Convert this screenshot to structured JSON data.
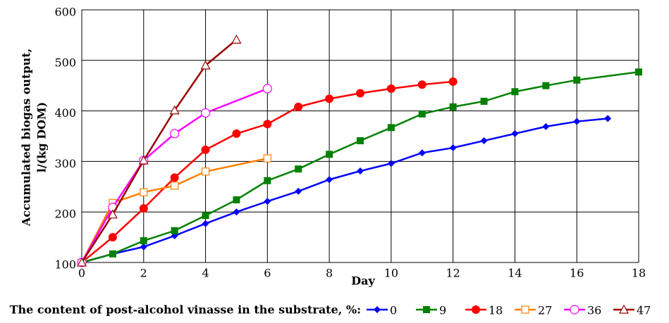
{
  "chart_data": {
    "type": "line",
    "y_label_lines": [
      "Accumulated biogas output,",
      "l/(kg DOM)"
    ],
    "x_label": "Day",
    "legend_title": "The content of post-alcohol vinasse in the substrate, %:",
    "xlim": [
      0,
      18
    ],
    "xticks": [
      0,
      2,
      4,
      6,
      8,
      10,
      12,
      14,
      16,
      18
    ],
    "ylim": [
      100,
      600
    ],
    "yticks": [
      100,
      200,
      300,
      400,
      500,
      600
    ],
    "grid": true,
    "series": [
      {
        "name": "0",
        "color": "#0000ff",
        "marker": "diamond",
        "x": [
          0,
          1,
          2,
          3,
          4,
          5,
          6,
          7,
          8,
          9,
          10,
          11,
          12,
          13,
          14,
          15,
          16,
          17
        ],
        "values": [
          100,
          117,
          131,
          153,
          177,
          200,
          221,
          241,
          264,
          281,
          296,
          317,
          327,
          341,
          355,
          369,
          379,
          385
        ]
      },
      {
        "name": "9",
        "color": "#008000",
        "marker": "square",
        "x": [
          0,
          1,
          2,
          3,
          4,
          5,
          6,
          7,
          8,
          9,
          10,
          11,
          12,
          13,
          14,
          15,
          16,
          18
        ],
        "values": [
          100,
          117,
          143,
          163,
          193,
          224,
          262,
          285,
          314,
          341,
          367,
          394,
          408,
          419,
          438,
          450,
          461,
          477
        ]
      },
      {
        "name": "18",
        "color": "#ff0000",
        "marker": "circle",
        "x": [
          0,
          1,
          2,
          3,
          4,
          5,
          6,
          7,
          8,
          9,
          10,
          11,
          12
        ],
        "values": [
          100,
          150,
          207,
          268,
          323,
          355,
          374,
          408,
          424,
          435,
          444,
          452,
          458
        ]
      },
      {
        "name": "27",
        "color": "#ff8000",
        "marker": "open-square",
        "x": [
          0,
          1,
          2,
          3,
          4,
          6
        ],
        "values": [
          100,
          218,
          239,
          252,
          280,
          306
        ]
      },
      {
        "name": "36",
        "color": "#ff00ff",
        "marker": "open-circle",
        "x": [
          0,
          1,
          2,
          3,
          4,
          6
        ],
        "values": [
          100,
          209,
          302,
          355,
          396,
          444
        ]
      },
      {
        "name": "47",
        "color": "#990000",
        "marker": "open-triangle",
        "x": [
          0,
          1,
          2,
          3,
          4,
          5
        ],
        "values": [
          100,
          195,
          302,
          401,
          490,
          541
        ]
      }
    ]
  }
}
